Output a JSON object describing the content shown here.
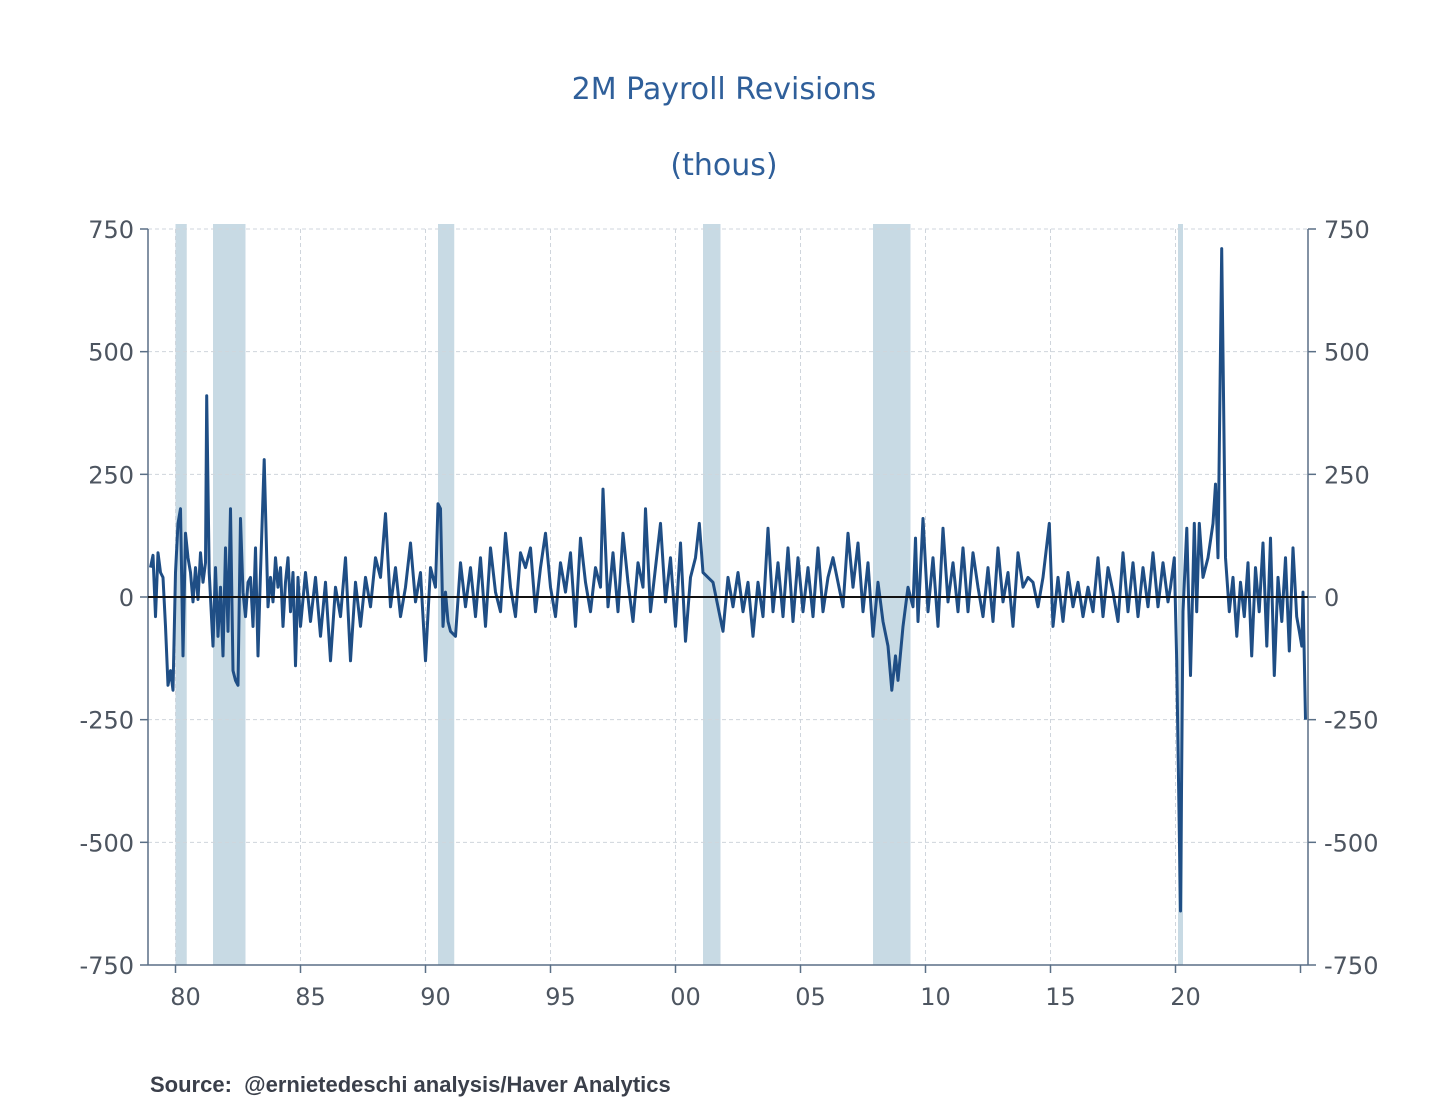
{
  "chart_data": {
    "type": "line",
    "title": "2M Payroll Revisions",
    "subtitle": "(thous)",
    "source": "Source:  @ernietedeschi analysis/Haver Analytics",
    "ylim": [
      -750,
      750
    ],
    "xlim": [
      1978.9,
      2025.3
    ],
    "y_ticks": [
      750,
      500,
      250,
      0,
      -250,
      -500,
      -750
    ],
    "y_tick_labels": [
      "750",
      "500",
      "250",
      "0",
      "-250",
      "-500",
      "-750"
    ],
    "x_ticks": [
      1980,
      1985,
      1990,
      1995,
      2000,
      2005,
      2010,
      2015,
      2020
    ],
    "x_tick_labels": [
      "80",
      "85",
      "90",
      "95",
      "00",
      "05",
      "10",
      "15",
      "20"
    ],
    "grid": true,
    "recessions": [
      [
        1980.0,
        1980.45
      ],
      [
        1981.5,
        1982.8
      ],
      [
        1990.5,
        1991.15
      ],
      [
        2001.1,
        2001.8
      ],
      [
        2007.9,
        2009.4
      ],
      [
        2020.1,
        2020.3
      ]
    ],
    "series": [
      {
        "color": "#1f4e85",
        "points": [
          [
            1979.0,
            60
          ],
          [
            1979.1,
            85
          ],
          [
            1979.2,
            -40
          ],
          [
            1979.3,
            90
          ],
          [
            1979.4,
            50
          ],
          [
            1979.5,
            40
          ],
          [
            1979.6,
            -60
          ],
          [
            1979.7,
            -180
          ],
          [
            1979.8,
            -150
          ],
          [
            1979.9,
            -190
          ],
          [
            1980.0,
            50
          ],
          [
            1980.1,
            150
          ],
          [
            1980.2,
            180
          ],
          [
            1980.3,
            -120
          ],
          [
            1980.4,
            130
          ],
          [
            1980.5,
            80
          ],
          [
            1980.6,
            50
          ],
          [
            1980.7,
            -10
          ],
          [
            1980.8,
            60
          ],
          [
            1980.9,
            -5
          ],
          [
            1981.0,
            90
          ],
          [
            1981.1,
            30
          ],
          [
            1981.2,
            70
          ],
          [
            1981.25,
            410
          ],
          [
            1981.35,
            50
          ],
          [
            1981.5,
            -100
          ],
          [
            1981.6,
            60
          ],
          [
            1981.7,
            -80
          ],
          [
            1981.8,
            20
          ],
          [
            1981.9,
            -120
          ],
          [
            1982.0,
            100
          ],
          [
            1982.1,
            -70
          ],
          [
            1982.2,
            180
          ],
          [
            1982.3,
            -150
          ],
          [
            1982.4,
            -170
          ],
          [
            1982.5,
            -180
          ],
          [
            1982.6,
            160
          ],
          [
            1982.7,
            10
          ],
          [
            1982.8,
            -40
          ],
          [
            1982.9,
            30
          ],
          [
            1983.0,
            40
          ],
          [
            1983.1,
            -60
          ],
          [
            1983.2,
            100
          ],
          [
            1983.3,
            -120
          ],
          [
            1983.4,
            50
          ],
          [
            1983.55,
            280
          ],
          [
            1983.7,
            -20
          ],
          [
            1983.8,
            40
          ],
          [
            1983.9,
            -10
          ],
          [
            1984.0,
            80
          ],
          [
            1984.1,
            20
          ],
          [
            1984.2,
            60
          ],
          [
            1984.3,
            -60
          ],
          [
            1984.4,
            30
          ],
          [
            1984.5,
            80
          ],
          [
            1984.6,
            -30
          ],
          [
            1984.7,
            50
          ],
          [
            1984.8,
            -140
          ],
          [
            1984.9,
            40
          ],
          [
            1985.0,
            -60
          ],
          [
            1985.2,
            50
          ],
          [
            1985.4,
            -50
          ],
          [
            1985.6,
            40
          ],
          [
            1985.8,
            -80
          ],
          [
            1986.0,
            30
          ],
          [
            1986.2,
            -130
          ],
          [
            1986.4,
            20
          ],
          [
            1986.6,
            -40
          ],
          [
            1986.8,
            80
          ],
          [
            1987.0,
            -130
          ],
          [
            1987.2,
            30
          ],
          [
            1987.4,
            -60
          ],
          [
            1987.6,
            40
          ],
          [
            1987.8,
            -20
          ],
          [
            1988.0,
            80
          ],
          [
            1988.2,
            40
          ],
          [
            1988.4,
            170
          ],
          [
            1988.6,
            -20
          ],
          [
            1988.8,
            60
          ],
          [
            1989.0,
            -40
          ],
          [
            1989.2,
            20
          ],
          [
            1989.4,
            110
          ],
          [
            1989.6,
            -10
          ],
          [
            1989.8,
            50
          ],
          [
            1990.0,
            -130
          ],
          [
            1990.2,
            60
          ],
          [
            1990.4,
            20
          ],
          [
            1990.5,
            190
          ],
          [
            1990.6,
            180
          ],
          [
            1990.7,
            -60
          ],
          [
            1990.8,
            10
          ],
          [
            1990.9,
            -50
          ],
          [
            1991.0,
            -70
          ],
          [
            1991.2,
            -80
          ],
          [
            1991.4,
            70
          ],
          [
            1991.6,
            -20
          ],
          [
            1991.8,
            60
          ],
          [
            1992.0,
            -40
          ],
          [
            1992.2,
            80
          ],
          [
            1992.4,
            -60
          ],
          [
            1992.6,
            100
          ],
          [
            1992.8,
            10
          ],
          [
            1993.0,
            -30
          ],
          [
            1993.2,
            130
          ],
          [
            1993.4,
            20
          ],
          [
            1993.6,
            -40
          ],
          [
            1993.8,
            90
          ],
          [
            1994.0,
            60
          ],
          [
            1994.2,
            100
          ],
          [
            1994.4,
            -30
          ],
          [
            1994.6,
            60
          ],
          [
            1994.8,
            130
          ],
          [
            1995.0,
            20
          ],
          [
            1995.2,
            -40
          ],
          [
            1995.4,
            70
          ],
          [
            1995.6,
            10
          ],
          [
            1995.8,
            90
          ],
          [
            1996.0,
            -60
          ],
          [
            1996.2,
            120
          ],
          [
            1996.4,
            30
          ],
          [
            1996.6,
            -30
          ],
          [
            1996.8,
            60
          ],
          [
            1997.0,
            20
          ],
          [
            1997.1,
            220
          ],
          [
            1997.3,
            -20
          ],
          [
            1997.5,
            90
          ],
          [
            1997.7,
            -30
          ],
          [
            1997.9,
            130
          ],
          [
            1998.1,
            30
          ],
          [
            1998.3,
            -50
          ],
          [
            1998.5,
            70
          ],
          [
            1998.7,
            20
          ],
          [
            1998.8,
            180
          ],
          [
            1999.0,
            -30
          ],
          [
            1999.2,
            60
          ],
          [
            1999.4,
            150
          ],
          [
            1999.6,
            -10
          ],
          [
            1999.8,
            80
          ],
          [
            2000.0,
            -60
          ],
          [
            2000.2,
            110
          ],
          [
            2000.4,
            -90
          ],
          [
            2000.6,
            40
          ],
          [
            2000.8,
            80
          ],
          [
            2000.95,
            150
          ],
          [
            2001.1,
            50
          ],
          [
            2001.3,
            40
          ],
          [
            2001.5,
            30
          ],
          [
            2001.7,
            -20
          ],
          [
            2001.9,
            -70
          ],
          [
            2002.1,
            40
          ],
          [
            2002.3,
            -20
          ],
          [
            2002.5,
            50
          ],
          [
            2002.7,
            -30
          ],
          [
            2002.9,
            30
          ],
          [
            2003.1,
            -80
          ],
          [
            2003.3,
            30
          ],
          [
            2003.5,
            -40
          ],
          [
            2003.7,
            140
          ],
          [
            2003.9,
            -30
          ],
          [
            2004.1,
            70
          ],
          [
            2004.3,
            -40
          ],
          [
            2004.5,
            100
          ],
          [
            2004.7,
            -50
          ],
          [
            2004.9,
            80
          ],
          [
            2005.1,
            -30
          ],
          [
            2005.3,
            60
          ],
          [
            2005.5,
            -40
          ],
          [
            2005.7,
            100
          ],
          [
            2005.9,
            -30
          ],
          [
            2006.1,
            40
          ],
          [
            2006.3,
            80
          ],
          [
            2006.5,
            30
          ],
          [
            2006.7,
            -20
          ],
          [
            2006.9,
            130
          ],
          [
            2007.1,
            20
          ],
          [
            2007.3,
            110
          ],
          [
            2007.5,
            -30
          ],
          [
            2007.7,
            70
          ],
          [
            2007.9,
            -80
          ],
          [
            2008.1,
            30
          ],
          [
            2008.3,
            -50
          ],
          [
            2008.5,
            -100
          ],
          [
            2008.65,
            -190
          ],
          [
            2008.8,
            -120
          ],
          [
            2008.9,
            -170
          ],
          [
            2009.1,
            -60
          ],
          [
            2009.3,
            20
          ],
          [
            2009.5,
            -20
          ],
          [
            2009.6,
            120
          ],
          [
            2009.7,
            -50
          ],
          [
            2009.9,
            160
          ],
          [
            2010.1,
            -30
          ],
          [
            2010.3,
            80
          ],
          [
            2010.5,
            -60
          ],
          [
            2010.7,
            140
          ],
          [
            2010.9,
            -10
          ],
          [
            2011.1,
            70
          ],
          [
            2011.3,
            -30
          ],
          [
            2011.5,
            100
          ],
          [
            2011.7,
            -30
          ],
          [
            2011.9,
            90
          ],
          [
            2012.1,
            20
          ],
          [
            2012.3,
            -40
          ],
          [
            2012.5,
            60
          ],
          [
            2012.7,
            -50
          ],
          [
            2012.9,
            100
          ],
          [
            2013.1,
            -10
          ],
          [
            2013.3,
            50
          ],
          [
            2013.5,
            -60
          ],
          [
            2013.7,
            90
          ],
          [
            2013.9,
            20
          ],
          [
            2014.1,
            40
          ],
          [
            2014.3,
            30
          ],
          [
            2014.5,
            -20
          ],
          [
            2014.7,
            40
          ],
          [
            2014.95,
            150
          ],
          [
            2015.1,
            -60
          ],
          [
            2015.3,
            40
          ],
          [
            2015.5,
            -50
          ],
          [
            2015.7,
            50
          ],
          [
            2015.9,
            -20
          ],
          [
            2016.1,
            30
          ],
          [
            2016.3,
            -40
          ],
          [
            2016.5,
            20
          ],
          [
            2016.7,
            -30
          ],
          [
            2016.9,
            80
          ],
          [
            2017.1,
            -40
          ],
          [
            2017.3,
            60
          ],
          [
            2017.5,
            10
          ],
          [
            2017.7,
            -50
          ],
          [
            2017.9,
            90
          ],
          [
            2018.1,
            -30
          ],
          [
            2018.3,
            70
          ],
          [
            2018.5,
            -40
          ],
          [
            2018.7,
            60
          ],
          [
            2018.9,
            -20
          ],
          [
            2019.1,
            90
          ],
          [
            2019.3,
            -20
          ],
          [
            2019.5,
            70
          ],
          [
            2019.7,
            -10
          ],
          [
            2019.8,
            20
          ],
          [
            2019.95,
            80
          ],
          [
            2020.05,
            -130
          ],
          [
            2020.2,
            -640
          ],
          [
            2020.3,
            -30
          ],
          [
            2020.45,
            140
          ],
          [
            2020.6,
            -160
          ],
          [
            2020.75,
            150
          ],
          [
            2020.85,
            -30
          ],
          [
            2020.95,
            150
          ],
          [
            2021.1,
            40
          ],
          [
            2021.3,
            80
          ],
          [
            2021.5,
            150
          ],
          [
            2021.6,
            230
          ],
          [
            2021.7,
            80
          ],
          [
            2021.85,
            710
          ],
          [
            2022.0,
            80
          ],
          [
            2022.15,
            -30
          ],
          [
            2022.3,
            40
          ],
          [
            2022.45,
            -80
          ],
          [
            2022.6,
            30
          ],
          [
            2022.75,
            -40
          ],
          [
            2022.9,
            70
          ],
          [
            2023.05,
            -120
          ],
          [
            2023.2,
            60
          ],
          [
            2023.35,
            -30
          ],
          [
            2023.5,
            110
          ],
          [
            2023.65,
            -100
          ],
          [
            2023.8,
            120
          ],
          [
            2023.95,
            -160
          ],
          [
            2024.1,
            40
          ],
          [
            2024.25,
            -50
          ],
          [
            2024.4,
            80
          ],
          [
            2024.55,
            -110
          ],
          [
            2024.7,
            100
          ],
          [
            2024.85,
            -40
          ],
          [
            2024.95,
            -70
          ],
          [
            2025.05,
            -100
          ],
          [
            2025.1,
            10
          ],
          [
            2025.2,
            -250
          ]
        ]
      }
    ]
  }
}
